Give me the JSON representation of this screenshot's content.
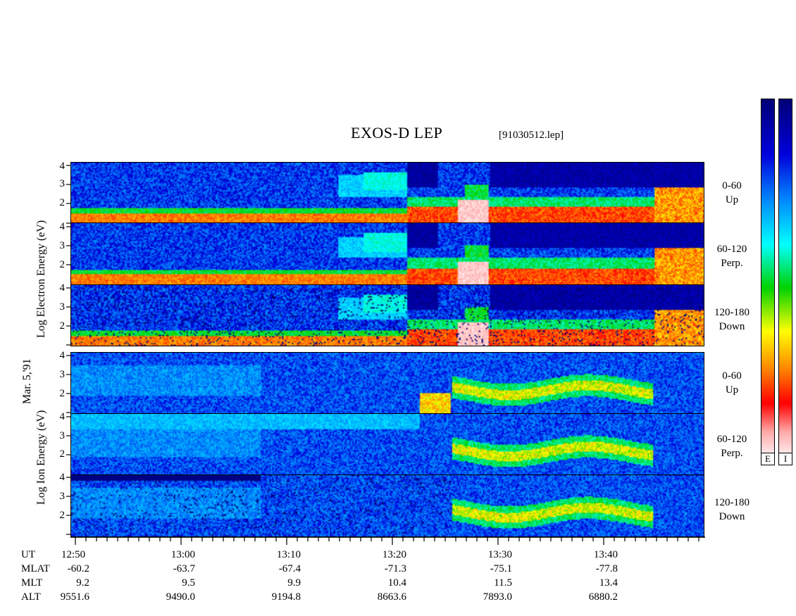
{
  "title": "EXOS-D LEP",
  "filename": "[91030512.lep]",
  "date_label": "Mar. 5,'91",
  "electron_axis_label": "Log   Electron   Energy  (eV)",
  "ion_axis_label": "Log    Ion   Energy  (eV)",
  "y_ticks": [
    "4",
    "3",
    "2"
  ],
  "panels": [
    {
      "species": "electron",
      "pitch": "0-60",
      "dir": "Up"
    },
    {
      "species": "electron",
      "pitch": "60-120",
      "dir": "Perp."
    },
    {
      "species": "electron",
      "pitch": "120-180",
      "dir": "Down"
    },
    {
      "species": "ion",
      "pitch": "0-60",
      "dir": "Up"
    },
    {
      "species": "ion",
      "pitch": "60-120",
      "dir": "Perp."
    },
    {
      "species": "ion",
      "pitch": "120-180",
      "dir": "Down"
    }
  ],
  "colorbar_labels": [
    "E",
    "I"
  ],
  "colors": {
    "scale": [
      "#ffffff",
      "#ff9a9a",
      "#ff0000",
      "#ff8a00",
      "#ffff00",
      "#00cc00",
      "#00ffff",
      "#0080ff",
      "#0000d0",
      "#000080"
    ]
  },
  "ephemeris": {
    "row_labels": [
      "UT",
      "MLAT",
      "MLT",
      "ALT"
    ],
    "columns": [
      {
        "UT": "12:50",
        "MLAT": "-60.2",
        "MLT": "9.2",
        "ALT": "9551.6"
      },
      {
        "UT": "13:00",
        "MLAT": "-63.7",
        "MLT": "9.5",
        "ALT": "9490.0"
      },
      {
        "UT": "13:10",
        "MLAT": "-67.4",
        "MLT": "9.9",
        "ALT": "9194.8"
      },
      {
        "UT": "13:20",
        "MLAT": "-71.3",
        "MLT": "10.4",
        "ALT": "8663.6"
      },
      {
        "UT": "13:30",
        "MLAT": "-75.1",
        "MLT": "11.5",
        "ALT": "7893.0"
      },
      {
        "UT": "13:40",
        "MLAT": "-77.8",
        "MLT": "13.4",
        "ALT": "6880.2"
      }
    ]
  },
  "chart_data": {
    "type": "heatmap",
    "title": "EXOS-D LEP",
    "xlabel": "UT",
    "x_ticks": [
      "12:50",
      "13:00",
      "13:10",
      "13:20",
      "13:30",
      "13:40"
    ],
    "xlim": [
      "12:50",
      "13:49"
    ],
    "ylabel_electron": "Log Electron Energy (eV)",
    "ylabel_ion": "Log Ion Energy (eV)",
    "ylim": [
      1,
      4
    ],
    "y_ticks": [
      2,
      3,
      4
    ],
    "series": [
      {
        "name": "0-60 Up",
        "species": "electron"
      },
      {
        "name": "60-120 Perp.",
        "species": "electron"
      },
      {
        "name": "120-180 Down",
        "species": "electron"
      },
      {
        "name": "0-60 Up",
        "species": "ion"
      },
      {
        "name": "60-120 Perp.",
        "species": "ion"
      },
      {
        "name": "120-180 Down",
        "species": "ion"
      }
    ]
  }
}
